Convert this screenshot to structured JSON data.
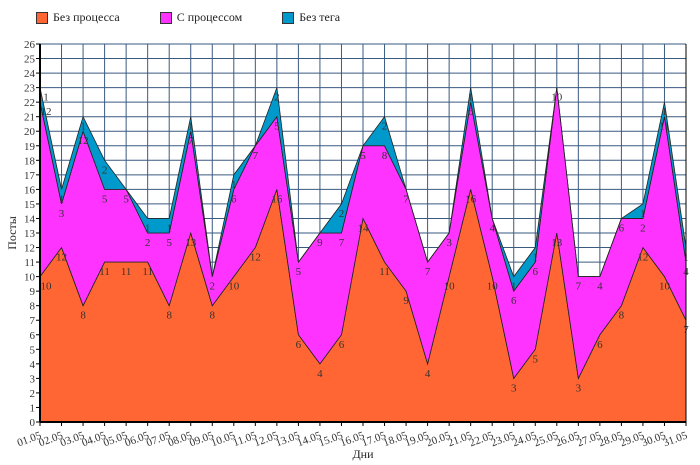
{
  "chart_data": {
    "type": "area",
    "stacked": true,
    "xlabel": "Дни",
    "ylabel": "Посты",
    "ylim": [
      0,
      26
    ],
    "grid": true,
    "legend_position": "top-left",
    "categories": [
      "01.05",
      "02.05",
      "03.05",
      "04.05",
      "05.05",
      "06.05",
      "07.05",
      "08.05",
      "09.05",
      "10.05",
      "11.05",
      "12.05",
      "13.05",
      "14.05",
      "15.05",
      "16.05",
      "17.05",
      "18.05",
      "19.05",
      "20.05",
      "21.05",
      "22.05",
      "23.05",
      "24.05",
      "25.05",
      "26.05",
      "27.05",
      "28.05",
      "29.05",
      "30.05",
      "31.05"
    ],
    "series": [
      {
        "name": "Без процесса",
        "color": "#ff6633",
        "values": [
          10,
          12,
          8,
          11,
          11,
          11,
          8,
          13,
          8,
          10,
          12,
          16,
          6,
          4,
          6,
          14,
          11,
          9,
          4,
          10,
          16,
          10,
          3,
          5,
          13,
          3,
          6,
          8,
          12,
          10,
          7
        ]
      },
      {
        "name": "С процессом",
        "color": "#ff33ff",
        "values": [
          12,
          3,
          12,
          5,
          5,
          2,
          5,
          7,
          2,
          6,
          7,
          5,
          5,
          9,
          7,
          5,
          8,
          7,
          7,
          3,
          6,
          4,
          6,
          6,
          10,
          7,
          4,
          6,
          2,
          11,
          4
        ]
      },
      {
        "name": "Без тега",
        "color": "#0099cc",
        "values": [
          1,
          1,
          1,
          2,
          0,
          1,
          1,
          1,
          0,
          1,
          0,
          2,
          0,
          0,
          2,
          0,
          2,
          0,
          0,
          0,
          1,
          0,
          1,
          1,
          0,
          0,
          0,
          0,
          1,
          1,
          1
        ]
      }
    ]
  }
}
